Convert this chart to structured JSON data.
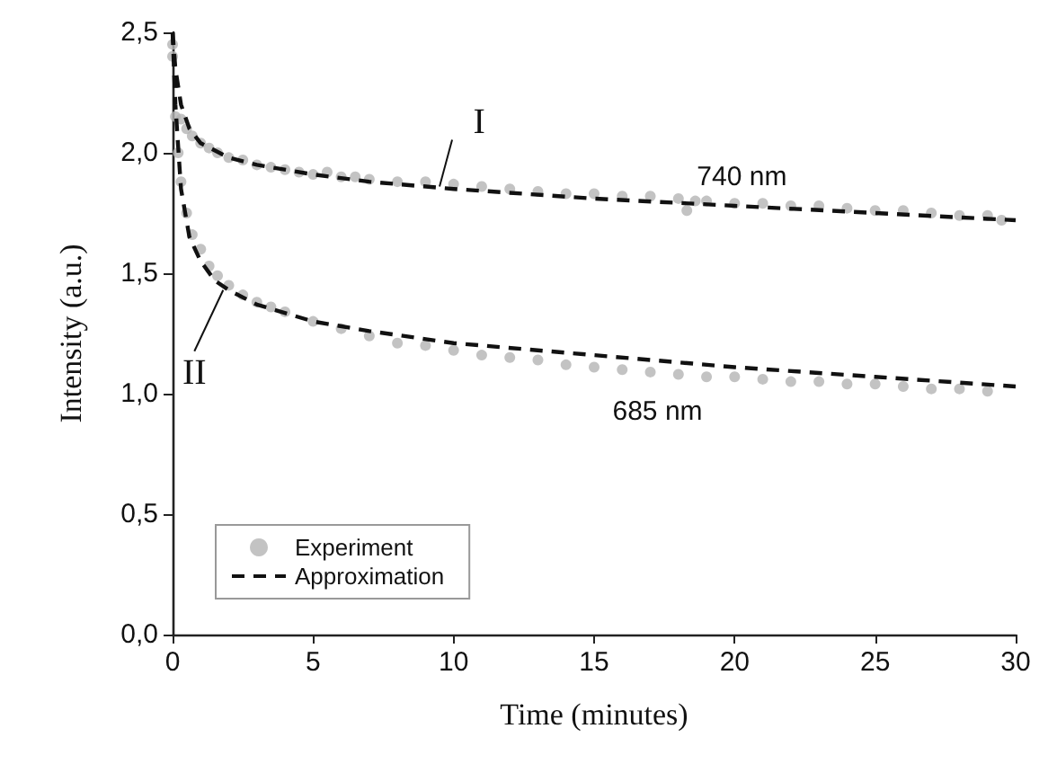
{
  "chart_data": {
    "type": "line",
    "xlabel": "Time (minutes)",
    "ylabel": "Intensity (a.u.)",
    "xlim": [
      0,
      30
    ],
    "xticks": [
      0,
      5,
      10,
      15,
      20,
      25,
      30
    ],
    "ylim": [
      0,
      2.5
    ],
    "yticks": [
      {
        "value": 0,
        "label": "0,0"
      },
      {
        "value": 0.5,
        "label": "0,5"
      },
      {
        "value": 1,
        "label": "1,0"
      },
      {
        "value": 1.5,
        "label": "1,5"
      },
      {
        "value": 2,
        "label": "2,0"
      },
      {
        "value": 2.5,
        "label": "2,5"
      }
    ],
    "grid": false,
    "legend": "bottom left",
    "annotations": [
      {
        "text": "I",
        "x": 9.5,
        "y": 1.86
      },
      {
        "text": "II",
        "x": 1.8,
        "y": 1.43
      },
      {
        "text": "740 nm",
        "x": 20,
        "y": 1.78
      },
      {
        "text": "685 nm",
        "x": 17,
        "y": 1.12
      }
    ],
    "series": [
      {
        "name": "Experiment",
        "type": "scatter",
        "marker": "circle",
        "color": "#b4b4b4",
        "x": [
          0,
          0.1,
          0.2,
          0.3,
          0.5,
          0.7,
          1,
          1.3,
          1.6,
          2,
          2.5,
          3,
          3.5,
          4,
          4.5,
          5,
          5.5,
          6,
          6.5,
          7,
          8,
          9,
          10,
          11,
          12,
          13,
          14,
          15,
          16,
          17,
          18,
          18.3,
          18.6,
          19,
          20,
          21,
          22,
          23,
          24,
          25,
          26,
          27,
          28,
          29,
          29.5
        ],
        "values": [
          2.45,
          null,
          null,
          2.14,
          2.1,
          2.07,
          2.04,
          2.02,
          2.0,
          1.98,
          1.97,
          1.95,
          1.94,
          1.93,
          1.92,
          1.91,
          1.92,
          1.9,
          1.9,
          1.89,
          1.88,
          1.88,
          1.87,
          1.86,
          1.85,
          1.84,
          1.83,
          1.83,
          1.82,
          1.82,
          1.81,
          1.76,
          1.8,
          1.8,
          1.79,
          1.79,
          1.78,
          1.78,
          1.77,
          1.76,
          1.76,
          1.75,
          1.74,
          1.74,
          1.72
        ]
      },
      {
        "type": "scatter",
        "marker": "circle",
        "color": "#b4b4b4",
        "x": [
          0,
          0.1,
          0.2,
          0.3,
          0.5,
          0.7,
          1,
          1.3,
          1.6,
          2,
          2.5,
          3,
          3.5,
          4,
          5,
          6,
          7,
          8,
          9,
          10,
          11,
          12,
          13,
          14,
          15,
          16,
          17,
          18,
          19,
          20,
          21,
          22,
          23,
          24,
          25,
          26,
          27,
          28,
          29
        ],
        "values": [
          2.4,
          2.15,
          2.0,
          1.88,
          1.75,
          1.66,
          1.6,
          1.53,
          1.49,
          1.45,
          1.41,
          1.38,
          1.36,
          1.34,
          1.3,
          1.27,
          1.24,
          1.21,
          1.2,
          1.18,
          1.16,
          1.15,
          1.14,
          1.12,
          1.11,
          1.1,
          1.09,
          1.08,
          1.07,
          1.07,
          1.06,
          1.05,
          1.05,
          1.04,
          1.04,
          1.03,
          1.02,
          1.02,
          1.01
        ]
      },
      {
        "name": "Approximation",
        "marker": "none",
        "line_style": "dashed",
        "color": "#111111",
        "x": [
          0,
          0.1,
          0.3,
          0.6,
          1,
          2,
          3,
          5,
          7,
          10,
          15,
          20,
          25,
          30
        ],
        "values": [
          2.5,
          2.35,
          2.2,
          2.1,
          2.04,
          1.98,
          1.95,
          1.91,
          1.88,
          1.85,
          1.81,
          1.78,
          1.75,
          1.72
        ]
      },
      {
        "marker": "none",
        "line_style": "dashed",
        "color": "#111111",
        "x": [
          0,
          0.1,
          0.3,
          0.6,
          1,
          1.5,
          2,
          3,
          5,
          7,
          10,
          15,
          20,
          25,
          30
        ],
        "values": [
          2.5,
          2.2,
          1.85,
          1.65,
          1.55,
          1.47,
          1.43,
          1.37,
          1.3,
          1.26,
          1.21,
          1.16,
          1.11,
          1.07,
          1.03
        ]
      }
    ]
  }
}
